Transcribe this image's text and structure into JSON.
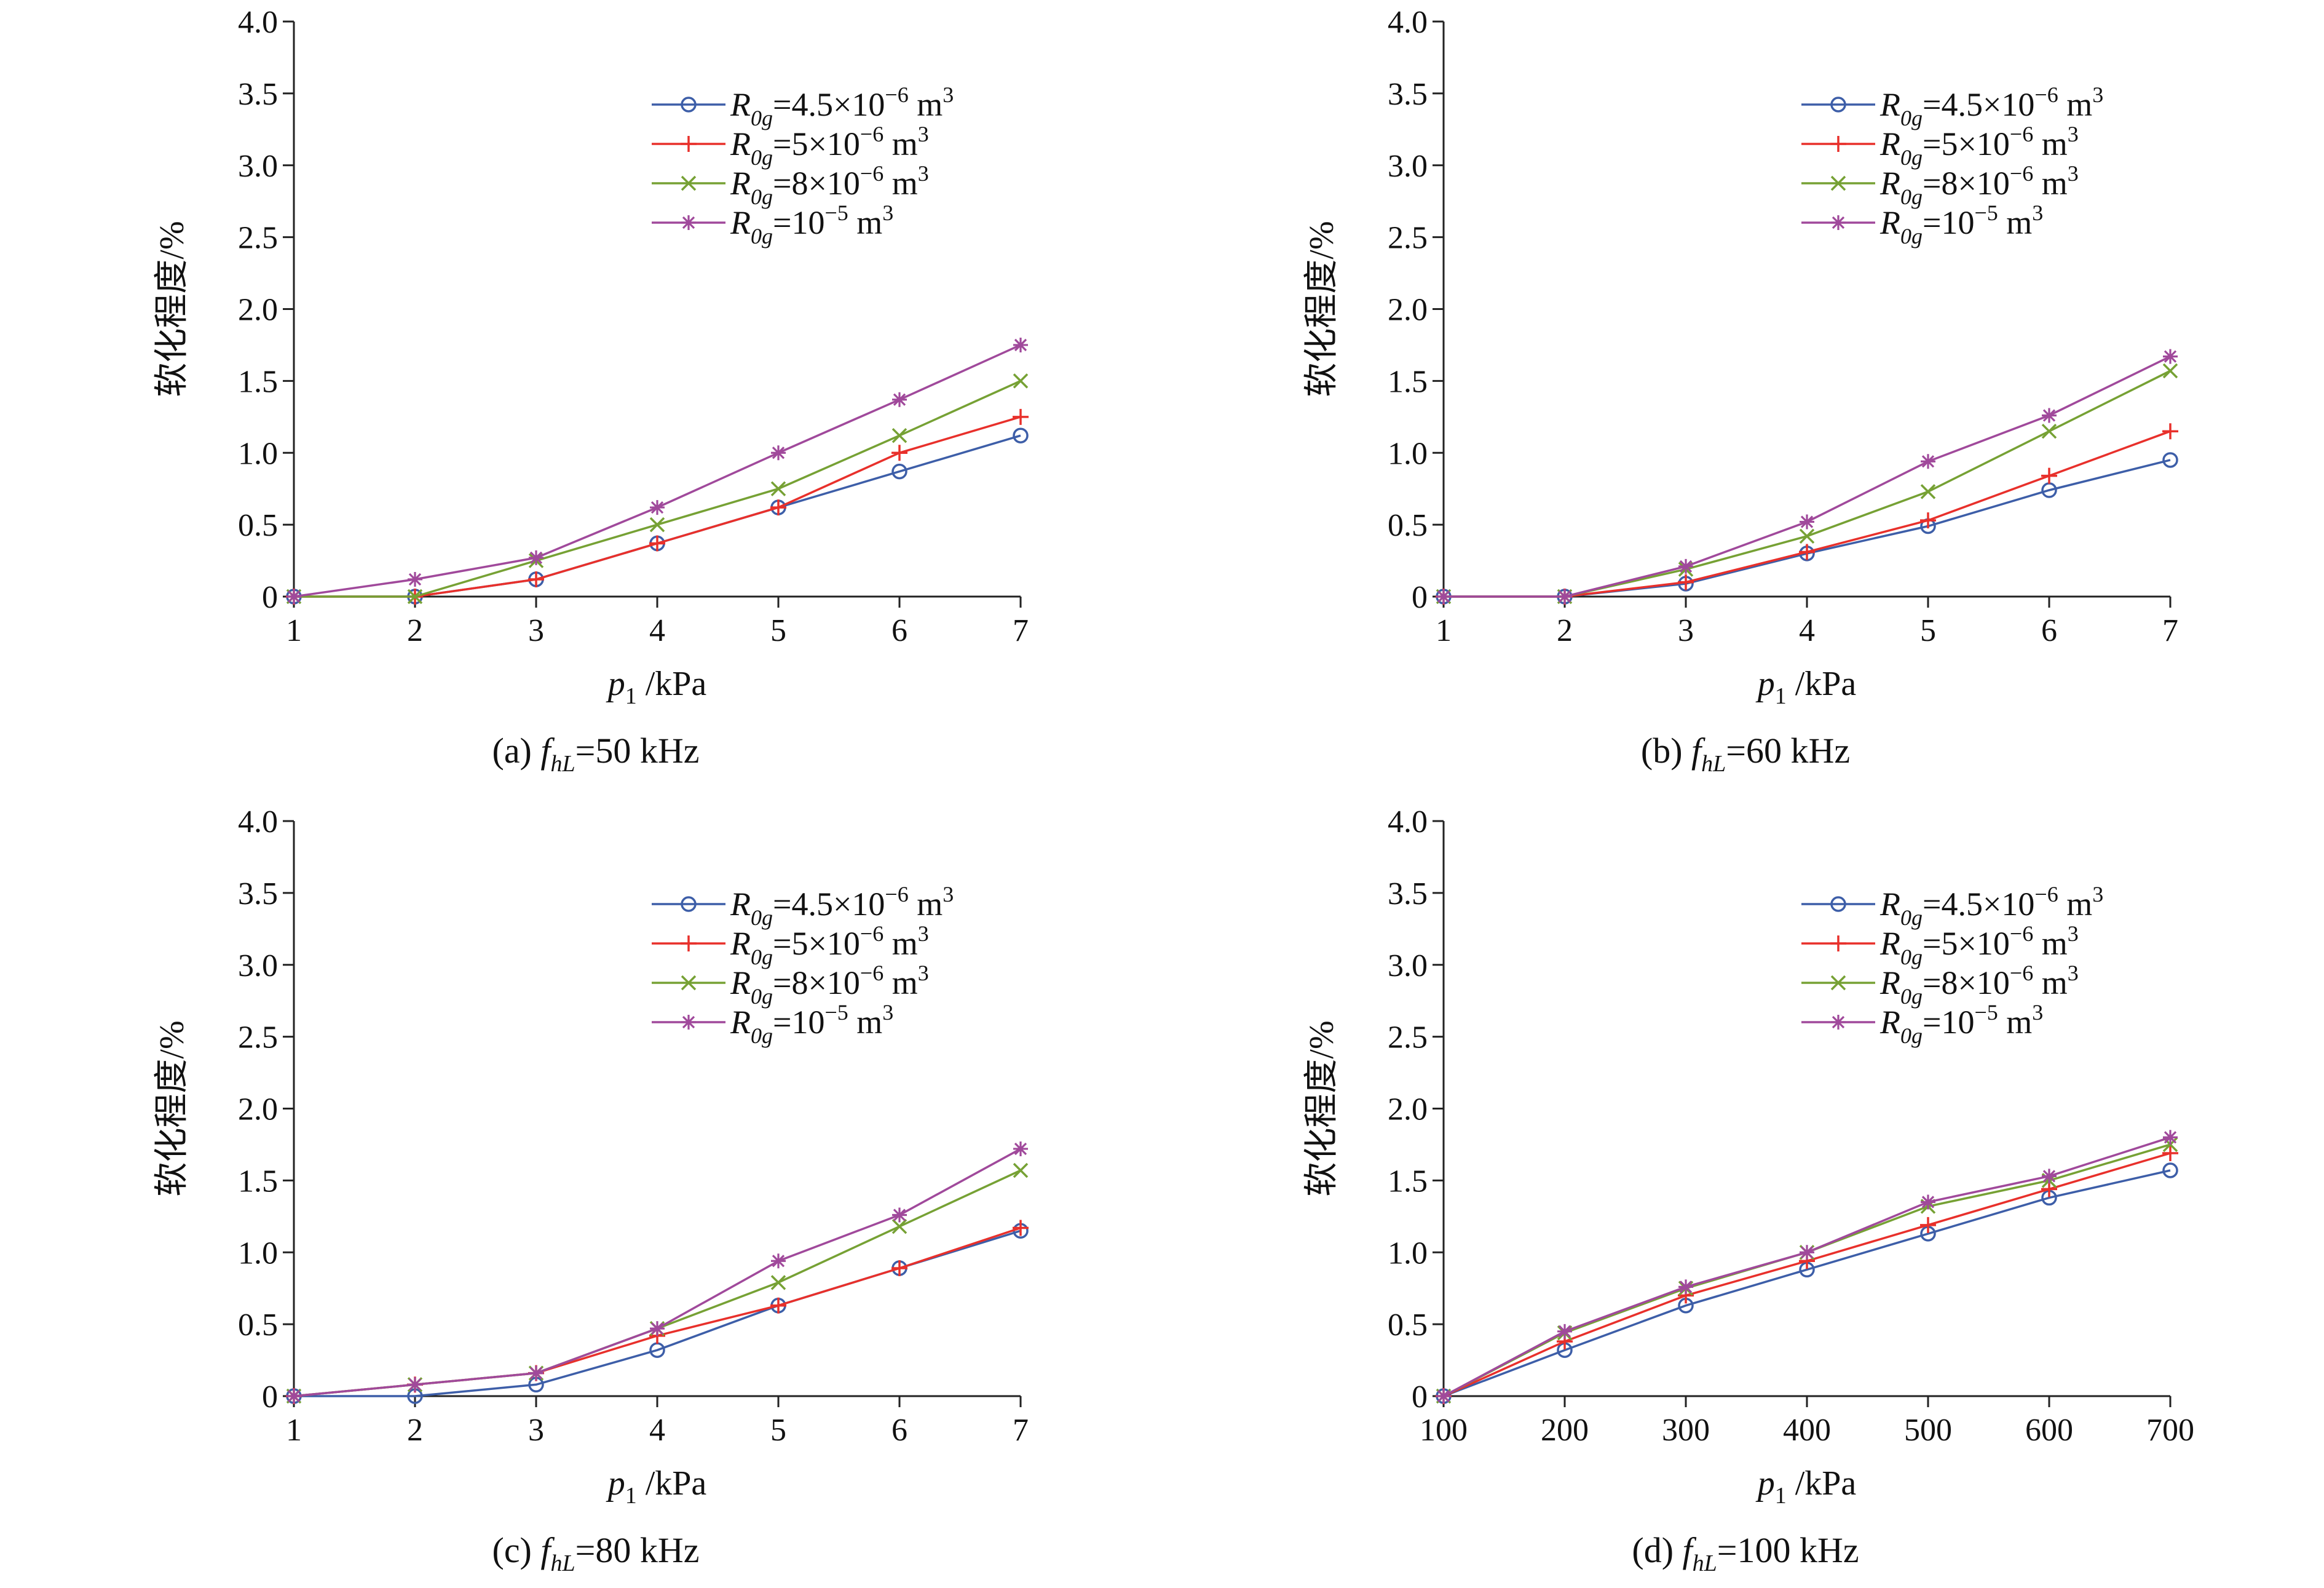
{
  "figure": {
    "x_axis_label": {
      "var": "p",
      "sub": "1",
      "unit": "/kPa"
    },
    "y_axis_label": "软化程度/%"
  },
  "series_meta": [
    {
      "name": "R_0g=4.5×10^-6 m^3",
      "var": "R",
      "sub": "0g",
      "text": "=4.5×10",
      "exp": "−6",
      "unit": " m",
      "unit_exp": "3",
      "color": "#3d5ea8",
      "marker": "circle"
    },
    {
      "name": "R_0g=5×10^-6 m^3",
      "var": "R",
      "sub": "0g",
      "text": "=5×10",
      "exp": "−6",
      "unit": " m",
      "unit_exp": "3",
      "color": "#e8302b",
      "marker": "plus"
    },
    {
      "name": "R_0g=8×10^-6 m^3",
      "var": "R",
      "sub": "0g",
      "text": "=8×10",
      "exp": "−6",
      "unit": " m",
      "unit_exp": "3",
      "color": "#76a134",
      "marker": "x"
    },
    {
      "name": "R_0g=10^-5 m^3",
      "var": "R",
      "sub": "0g",
      "text": "=10",
      "exp": "−5",
      "unit": " m",
      "unit_exp": "3",
      "color": "#a0499b",
      "marker": "star"
    }
  ],
  "chart_data": [
    {
      "type": "line",
      "caption": {
        "prefix": "(a) ",
        "var": "f",
        "sub": "hL",
        "text": "=50 kHz"
      },
      "x": [
        1,
        2,
        3,
        4,
        5,
        6,
        7
      ],
      "x_ticks": [
        "1",
        "2",
        "3",
        "4",
        "5",
        "6",
        "7"
      ],
      "xlim": [
        1,
        7
      ],
      "ylim": [
        0,
        4
      ],
      "y_ticks": [
        "0",
        "0.5",
        "1.0",
        "1.5",
        "2.0",
        "2.5",
        "3.0",
        "3.5",
        "4.0"
      ],
      "legend_position": "top-right",
      "series": [
        {
          "name": "R_0g=4.5×10^-6 m^3",
          "values": [
            0,
            0,
            0.12,
            0.37,
            0.62,
            0.87,
            1.12
          ]
        },
        {
          "name": "R_0g=5×10^-6 m^3",
          "values": [
            0,
            0,
            0.12,
            0.37,
            0.62,
            1.0,
            1.25
          ]
        },
        {
          "name": "R_0g=8×10^-6 m^3",
          "values": [
            0,
            0,
            0.25,
            0.5,
            0.75,
            1.12,
            1.5
          ]
        },
        {
          "name": "R_0g=10^-5 m^3",
          "values": [
            0,
            0.12,
            0.27,
            0.62,
            1.0,
            1.37,
            1.75
          ]
        }
      ]
    },
    {
      "type": "line",
      "caption": {
        "prefix": "(b) ",
        "var": "f",
        "sub": "hL",
        "text": "=60 kHz"
      },
      "x": [
        1,
        2,
        3,
        4,
        5,
        6,
        7
      ],
      "x_ticks": [
        "1",
        "2",
        "3",
        "4",
        "5",
        "6",
        "7"
      ],
      "xlim": [
        1,
        7
      ],
      "ylim": [
        0,
        4
      ],
      "y_ticks": [
        "0",
        "0.5",
        "1.0",
        "1.5",
        "2.0",
        "2.5",
        "3.0",
        "3.5",
        "4.0"
      ],
      "legend_position": "top-right",
      "series": [
        {
          "name": "R_0g=4.5×10^-6 m^3",
          "values": [
            0,
            0,
            0.09,
            0.3,
            0.49,
            0.74,
            0.95
          ]
        },
        {
          "name": "R_0g=5×10^-6 m^3",
          "values": [
            0,
            0,
            0.1,
            0.31,
            0.53,
            0.84,
            1.15
          ]
        },
        {
          "name": "R_0g=8×10^-6 m^3",
          "values": [
            0,
            0,
            0.19,
            0.42,
            0.73,
            1.15,
            1.57
          ]
        },
        {
          "name": "R_0g=10^-5 m^3",
          "values": [
            0,
            0,
            0.21,
            0.52,
            0.94,
            1.26,
            1.67
          ]
        }
      ]
    },
    {
      "type": "line",
      "caption": {
        "prefix": "(c) ",
        "var": "f",
        "sub": "hL",
        "text": "=80 kHz"
      },
      "x": [
        1,
        2,
        3,
        4,
        5,
        6,
        7
      ],
      "x_ticks": [
        "1",
        "2",
        "3",
        "4",
        "5",
        "6",
        "7"
      ],
      "xlim": [
        1,
        7
      ],
      "ylim": [
        0,
        4
      ],
      "y_ticks": [
        "0",
        "0.5",
        "1.0",
        "1.5",
        "2.0",
        "2.5",
        "3.0",
        "3.5",
        "4.0"
      ],
      "legend_position": "top-right",
      "series": [
        {
          "name": "R_0g=4.5×10^-6 m^3",
          "values": [
            0,
            0,
            0.08,
            0.32,
            0.63,
            0.89,
            1.15
          ]
        },
        {
          "name": "R_0g=5×10^-6 m^3",
          "values": [
            0,
            0.08,
            0.16,
            0.42,
            0.63,
            0.89,
            1.17
          ]
        },
        {
          "name": "R_0g=8×10^-6 m^3",
          "values": [
            0,
            0.08,
            0.16,
            0.47,
            0.79,
            1.18,
            1.57
          ]
        },
        {
          "name": "R_0g=10^-5 m^3",
          "values": [
            0,
            0.08,
            0.16,
            0.47,
            0.94,
            1.26,
            1.72
          ]
        }
      ]
    },
    {
      "type": "line",
      "caption": {
        "prefix": "(d) ",
        "var": "f",
        "sub": "hL",
        "text": "=100 kHz"
      },
      "x": [
        100,
        200,
        300,
        400,
        500,
        600,
        700
      ],
      "x_ticks": [
        "100",
        "200",
        "300",
        "400",
        "500",
        "600",
        "700"
      ],
      "xlim": [
        100,
        700
      ],
      "ylim": [
        0,
        4
      ],
      "y_ticks": [
        "0",
        "0.5",
        "1.0",
        "1.5",
        "2.0",
        "2.5",
        "3.0",
        "3.5",
        "4.0"
      ],
      "legend_position": "top-right",
      "series": [
        {
          "name": "R_0g=4.5×10^-6 m^3",
          "values": [
            0,
            0.32,
            0.63,
            0.88,
            1.13,
            1.38,
            1.57
          ]
        },
        {
          "name": "R_0g=5×10^-6 m^3",
          "values": [
            0,
            0.38,
            0.7,
            0.94,
            1.19,
            1.44,
            1.69
          ]
        },
        {
          "name": "R_0g=8×10^-6 m^3",
          "values": [
            0,
            0.44,
            0.75,
            1.0,
            1.32,
            1.5,
            1.75
          ]
        },
        {
          "name": "R_0g=10^-5 m^3",
          "values": [
            0,
            0.45,
            0.76,
            1.0,
            1.35,
            1.53,
            1.8
          ]
        }
      ]
    }
  ]
}
